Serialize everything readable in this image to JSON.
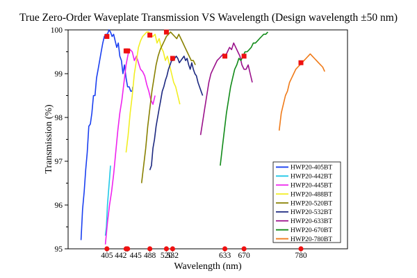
{
  "chart_data": {
    "type": "line",
    "title": "True Zero-Order Waveplate Transmission VS Wavelength (Design wavelength ±50 nm)",
    "xlabel": "Wavelength (nm)",
    "ylabel": "Transmission (%)",
    "xlim": [
      330,
      870
    ],
    "ylim": [
      95,
      100
    ],
    "x_ticks": [
      405,
      442,
      445,
      488,
      520,
      532,
      633,
      670,
      780
    ],
    "y_ticks": [
      95,
      96,
      97,
      98,
      99,
      100
    ],
    "grid": false,
    "legend_position": "bottom-right",
    "series": [
      {
        "name": "HWP20-405BT",
        "color": "#1a3ff0",
        "design_wavelength": 405,
        "design_transmission": 99.85,
        "x": [
          355,
          358,
          361,
          364,
          367,
          370,
          373,
          376,
          379,
          382,
          385,
          388,
          391,
          394,
          397,
          400,
          403,
          406,
          409,
          412,
          415,
          418,
          421,
          424,
          427,
          430,
          433,
          436,
          439,
          442,
          445,
          448,
          451,
          454,
          455
        ],
        "y": [
          95.2,
          95.9,
          96.3,
          96.8,
          97.2,
          97.8,
          97.85,
          98.1,
          98.5,
          98.5,
          98.9,
          99.1,
          99.3,
          99.5,
          99.7,
          99.85,
          99.9,
          99.9,
          100.0,
          99.95,
          99.85,
          99.9,
          99.75,
          99.6,
          99.7,
          99.4,
          99.3,
          99.0,
          99.2,
          98.9,
          98.7,
          98.7,
          98.6,
          98.6,
          98.7
        ]
      },
      {
        "name": "HWP20-442BT",
        "color": "#20c8e8",
        "design_wavelength": 442,
        "design_transmission": 99.52,
        "x": [
          402,
          404,
          406,
          408,
          410,
          412
        ],
        "y": [
          95.3,
          95.5,
          96.0,
          96.3,
          96.6,
          96.9
        ]
      },
      {
        "name": "HWP20-445BT",
        "color": "#ee22ee",
        "design_wavelength": 445,
        "design_transmission": 99.52,
        "x": [
          402,
          406,
          410,
          414,
          418,
          422,
          426,
          430,
          434,
          438,
          442,
          446,
          450,
          454,
          458,
          462,
          466,
          470,
          474,
          478,
          482,
          486,
          490,
          494,
          498
        ],
        "y": [
          95.1,
          95.6,
          96.0,
          96.3,
          96.7,
          97.2,
          97.7,
          98.1,
          98.4,
          98.8,
          99.2,
          99.45,
          99.55,
          99.5,
          99.3,
          99.4,
          99.25,
          99.1,
          99.05,
          98.95,
          98.75,
          98.6,
          98.4,
          98.3,
          98.5
        ]
      },
      {
        "name": "HWP20-488BT",
        "color": "#f2ee22",
        "design_wavelength": 488,
        "design_transmission": 99.88,
        "x": [
          442,
          446,
          450,
          454,
          458,
          462,
          466,
          470,
          474,
          478,
          482,
          486,
          490,
          494,
          498,
          502,
          506,
          510,
          514,
          518,
          522,
          526,
          530,
          534,
          538,
          542,
          546
        ],
        "y": [
          97.2,
          97.6,
          98.1,
          98.5,
          99.0,
          99.3,
          99.6,
          99.75,
          99.85,
          99.9,
          99.95,
          99.95,
          99.9,
          99.85,
          99.9,
          99.7,
          99.8,
          99.6,
          99.5,
          99.3,
          99.4,
          99.2,
          99.0,
          98.8,
          98.7,
          98.5,
          98.3
        ]
      },
      {
        "name": "HWP20-520BT",
        "color": "#888000",
        "design_wavelength": 520,
        "design_transmission": 99.95,
        "x": [
          472,
          476,
          480,
          484,
          488,
          492,
          496,
          500,
          504,
          508,
          512,
          516,
          520,
          524,
          528,
          532,
          536,
          540,
          544,
          548,
          552,
          556,
          560,
          564,
          568,
          572,
          576
        ],
        "y": [
          96.5,
          96.9,
          97.3,
          97.8,
          98.2,
          98.6,
          98.9,
          99.2,
          99.4,
          99.55,
          99.65,
          99.75,
          99.85,
          99.9,
          99.95,
          99.9,
          99.85,
          99.8,
          99.9,
          99.8,
          99.7,
          99.6,
          99.5,
          99.4,
          99.3,
          99.3,
          99.2
        ]
      },
      {
        "name": "HWP20-532BT",
        "color": "#1c2880",
        "design_wavelength": 532,
        "design_transmission": 99.35,
        "x": [
          488,
          491,
          494,
          497,
          500,
          503,
          506,
          509,
          512,
          515,
          518,
          521,
          524,
          527,
          530,
          533,
          536,
          539,
          542,
          545,
          548,
          551,
          554,
          557,
          560,
          563,
          566,
          569,
          572,
          575,
          578,
          581,
          584,
          587,
          590
        ],
        "y": [
          96.8,
          96.9,
          97.3,
          97.5,
          97.8,
          98.0,
          98.2,
          98.4,
          98.6,
          98.7,
          98.85,
          98.95,
          99.1,
          99.2,
          99.3,
          99.3,
          99.35,
          99.4,
          99.35,
          99.25,
          99.3,
          99.35,
          99.4,
          99.3,
          99.35,
          99.2,
          99.1,
          99.25,
          99.1,
          99.0,
          98.95,
          98.8,
          98.7,
          98.6,
          98.5
        ]
      },
      {
        "name": "HWP20-633BT",
        "color": "#9a108a",
        "design_wavelength": 633,
        "design_transmission": 99.4,
        "x": [
          586,
          590,
          594,
          598,
          602,
          606,
          610,
          614,
          618,
          622,
          626,
          630,
          634,
          638,
          642,
          646,
          650,
          654,
          658,
          662,
          666,
          670,
          674,
          678,
          682,
          686
        ],
        "y": [
          97.6,
          97.9,
          98.2,
          98.5,
          98.8,
          99.0,
          99.1,
          99.2,
          99.3,
          99.35,
          99.4,
          99.45,
          99.4,
          99.5,
          99.6,
          99.55,
          99.7,
          99.6,
          99.5,
          99.4,
          99.2,
          99.1,
          99.1,
          99.2,
          99.0,
          98.8
        ]
      },
      {
        "name": "HWP20-670BT",
        "color": "#108a18",
        "design_wavelength": 670,
        "design_transmission": 99.4,
        "x": [
          624,
          628,
          632,
          636,
          640,
          644,
          648,
          652,
          656,
          660,
          664,
          668,
          672,
          676,
          680,
          684,
          688,
          692,
          696,
          700,
          704,
          708,
          712,
          716
        ],
        "y": [
          96.9,
          97.3,
          97.7,
          98.1,
          98.4,
          98.7,
          98.9,
          99.1,
          99.2,
          99.35,
          99.3,
          99.4,
          99.5,
          99.5,
          99.55,
          99.6,
          99.7,
          99.7,
          99.75,
          99.8,
          99.85,
          99.9,
          99.9,
          99.95
        ]
      },
      {
        "name": "HWP20-780BT",
        "color": "#f07a18",
        "design_wavelength": 780,
        "design_transmission": 99.25,
        "x": [
          738,
          742,
          746,
          750,
          754,
          758,
          762,
          766,
          770,
          774,
          778,
          782,
          786,
          790,
          794,
          798,
          802,
          806,
          810,
          814,
          818,
          822,
          826
        ],
        "y": [
          97.7,
          98.1,
          98.3,
          98.5,
          98.6,
          98.8,
          98.9,
          99.0,
          99.1,
          99.15,
          99.2,
          99.25,
          99.3,
          99.35,
          99.4,
          99.45,
          99.4,
          99.35,
          99.3,
          99.25,
          99.2,
          99.15,
          99.05
        ]
      }
    ]
  }
}
